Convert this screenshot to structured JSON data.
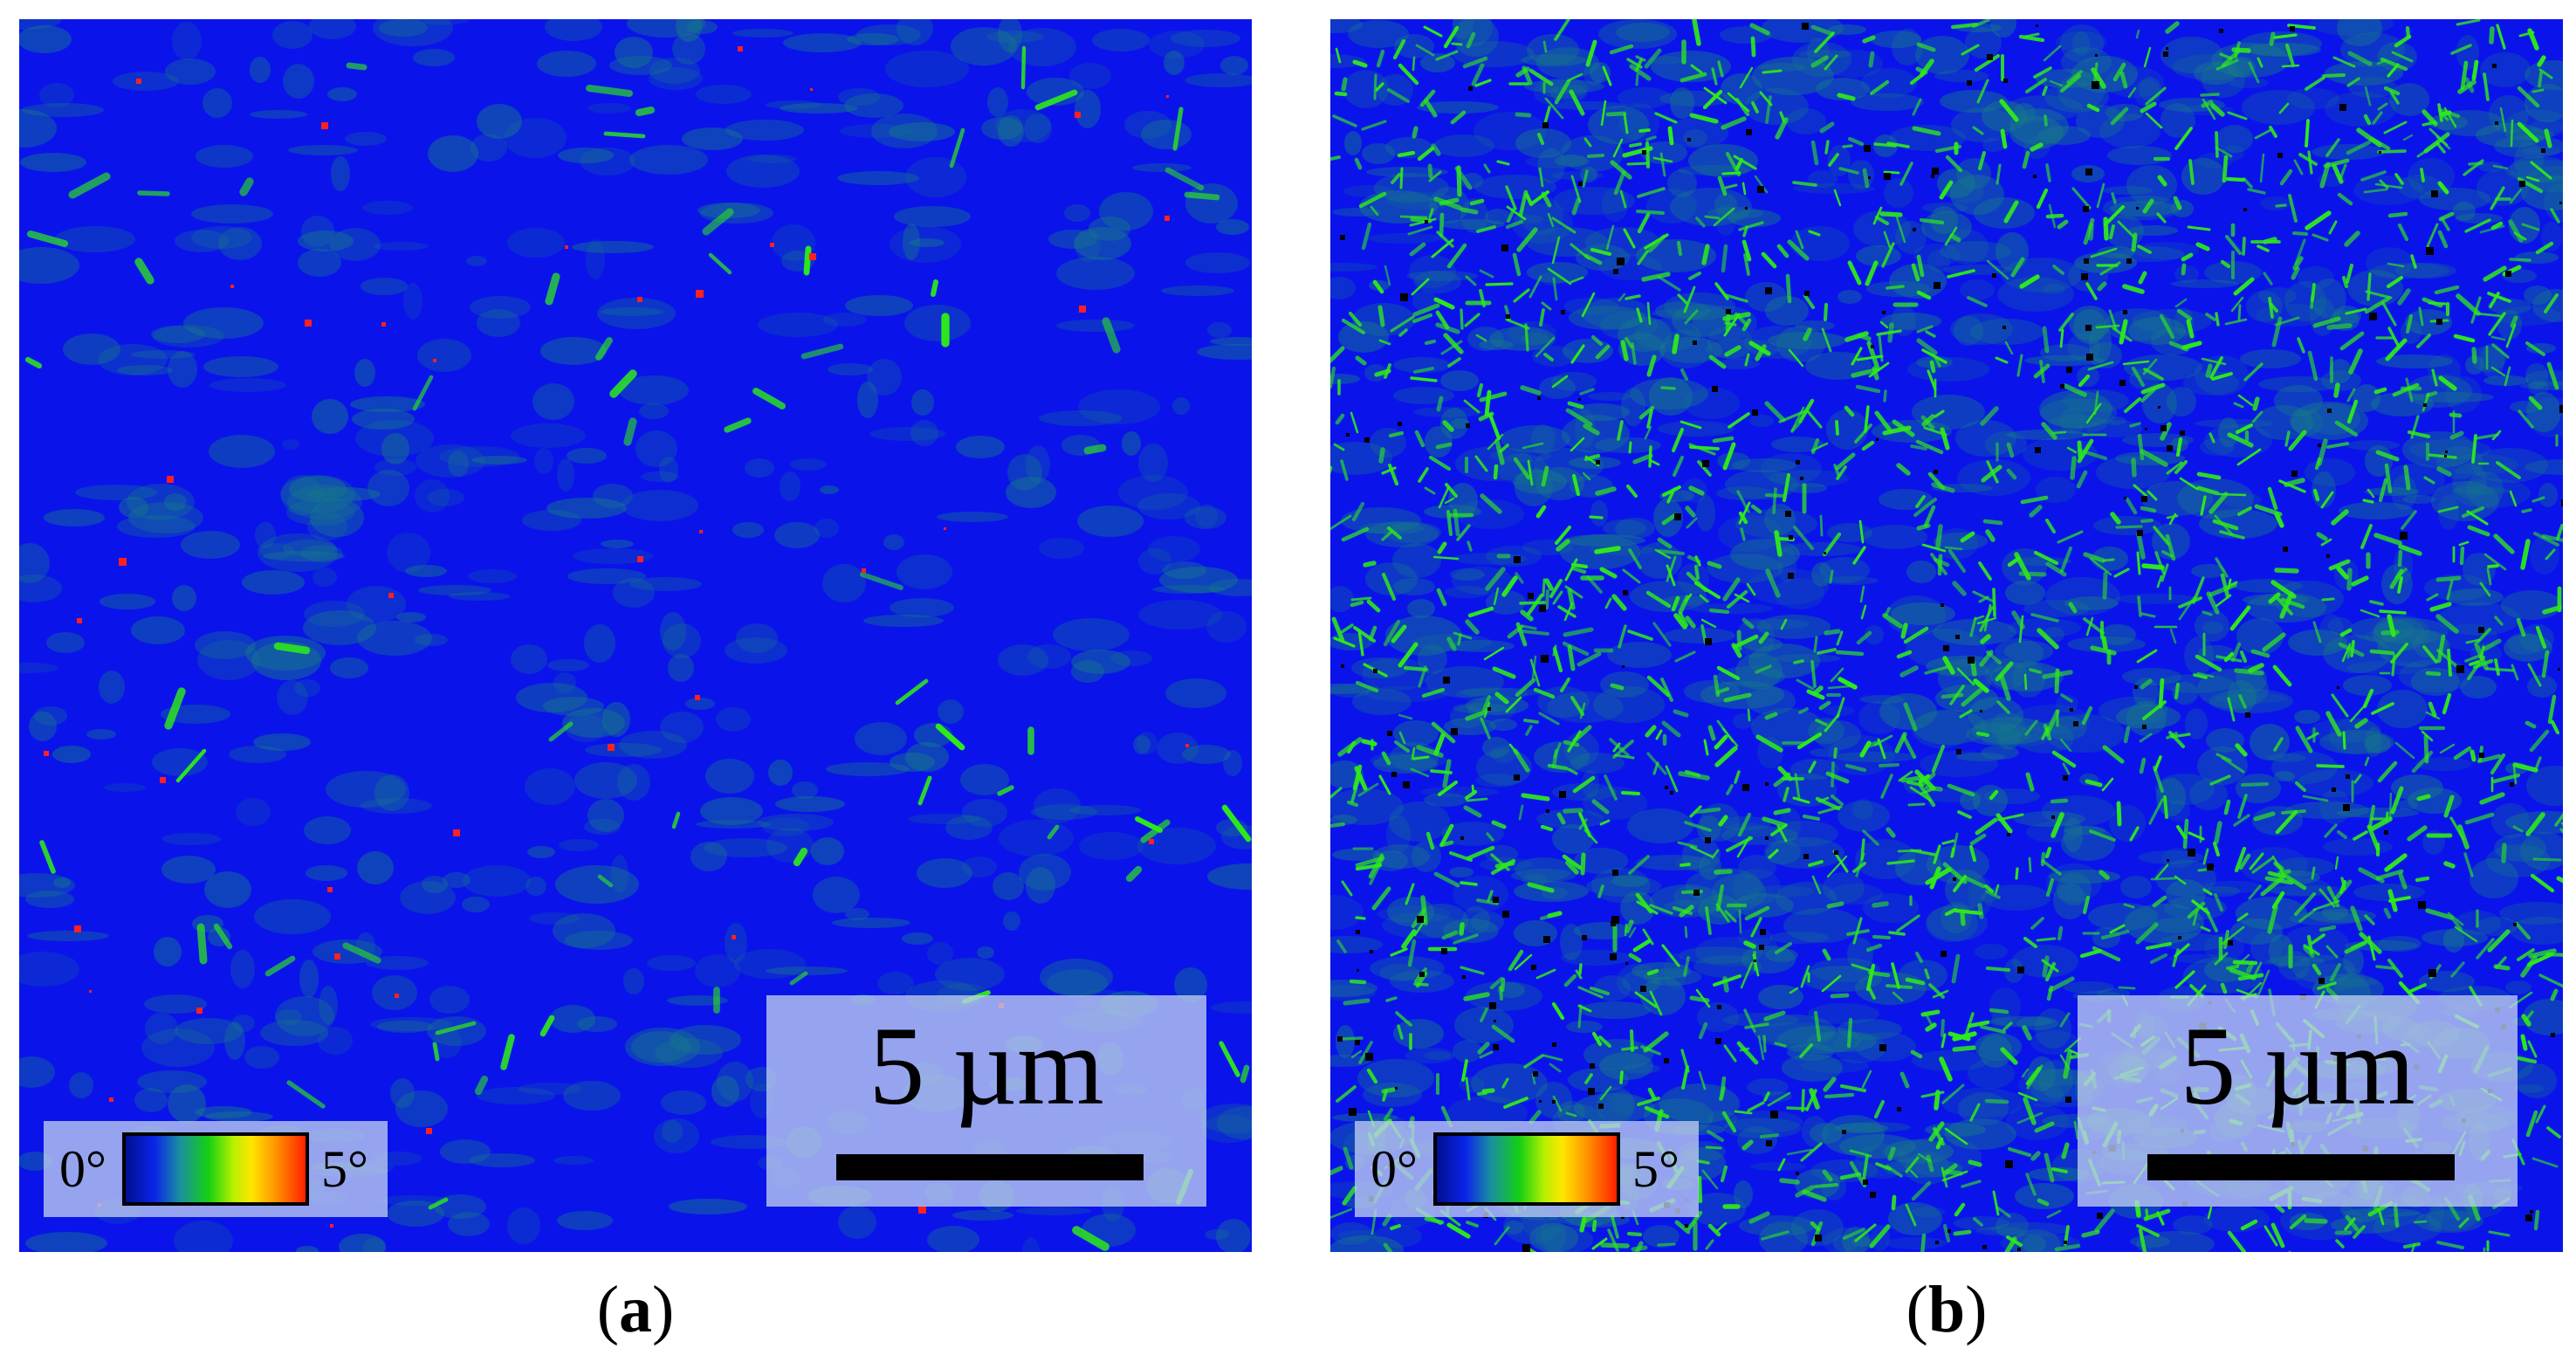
{
  "panels": [
    {
      "id": "a",
      "caption_letter": "a",
      "scale_bar_label": "5 µm",
      "legend_min": "0°",
      "legend_max": "5°",
      "background_color": "#0a14ea",
      "feature_color": "#2eea1a",
      "subgrain_color": "#167a88",
      "speckle_color": "#ff2020"
    },
    {
      "id": "b",
      "caption_letter": "b",
      "scale_bar_label": "5 µm",
      "legend_min": "0°",
      "legend_max": "5°",
      "background_color": "#0a14ea",
      "feature_color": "#2eea1a",
      "subgrain_color": "#167a88",
      "speckle_color": "#000000"
    }
  ]
}
